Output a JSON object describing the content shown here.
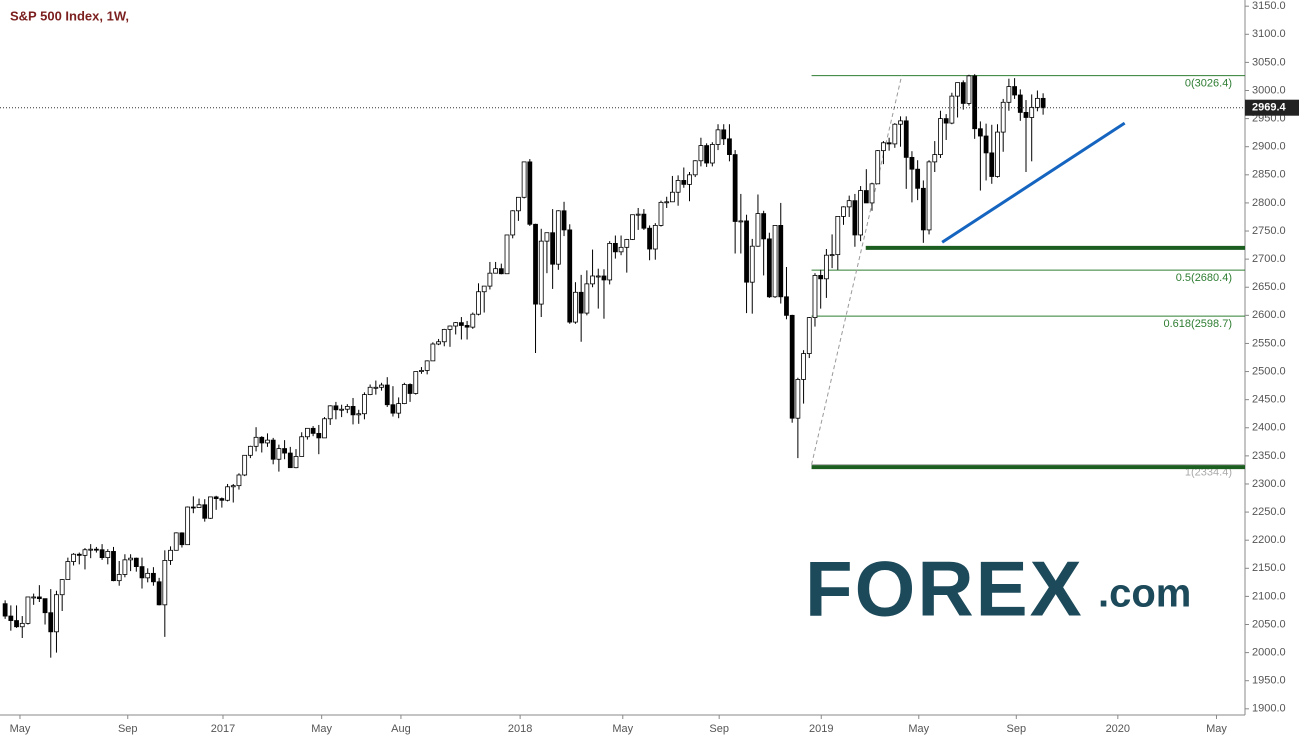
{
  "chart_data": {
    "type": "candlestick",
    "title": "S&P 500 Index, 1W,",
    "ohlc": [
      [
        2087,
        2093,
        2060,
        2065
      ],
      [
        2065,
        2084,
        2039,
        2057
      ],
      [
        2057,
        2084,
        2044,
        2046
      ],
      [
        2046,
        2065,
        2026,
        2052
      ],
      [
        2052,
        2099,
        2050,
        2099
      ],
      [
        2099,
        2105,
        2085,
        2099
      ],
      [
        2099,
        2120,
        2090,
        2096
      ],
      [
        2096,
        2096,
        2050,
        2071
      ],
      [
        2071,
        2113,
        1991,
        2037
      ],
      [
        2037,
        2110,
        2000,
        2103
      ],
      [
        2103,
        2131,
        2074,
        2130
      ],
      [
        2130,
        2169,
        2130,
        2162
      ],
      [
        2162,
        2177,
        2155,
        2175
      ],
      [
        2175,
        2178,
        2157,
        2173
      ],
      [
        2173,
        2186,
        2148,
        2183
      ],
      [
        2183,
        2193,
        2168,
        2184
      ],
      [
        2184,
        2188,
        2178,
        2183
      ],
      [
        2183,
        2193,
        2165,
        2169
      ],
      [
        2169,
        2184,
        2157,
        2180
      ],
      [
        2180,
        2188,
        2127,
        2128
      ],
      [
        2128,
        2163,
        2119,
        2139
      ],
      [
        2139,
        2175,
        2134,
        2165
      ],
      [
        2165,
        2175,
        2145,
        2168
      ],
      [
        2168,
        2169,
        2144,
        2153
      ],
      [
        2153,
        2169,
        2114,
        2133
      ],
      [
        2133,
        2150,
        2125,
        2141
      ],
      [
        2141,
        2152,
        2119,
        2126
      ],
      [
        2126,
        2133,
        2084,
        2085
      ],
      [
        2085,
        2182,
        2028,
        2164
      ],
      [
        2164,
        2189,
        2156,
        2182
      ],
      [
        2182,
        2214,
        2182,
        2213
      ],
      [
        2213,
        2214,
        2187,
        2192
      ],
      [
        2192,
        2260,
        2192,
        2259
      ],
      [
        2259,
        2278,
        2248,
        2258
      ],
      [
        2258,
        2274,
        2258,
        2263
      ],
      [
        2263,
        2273,
        2233,
        2239
      ],
      [
        2239,
        2277,
        2238,
        2277
      ],
      [
        2277,
        2279,
        2254,
        2274
      ],
      [
        2274,
        2276,
        2258,
        2271
      ],
      [
        2271,
        2300,
        2269,
        2295
      ],
      [
        2295,
        2300,
        2267,
        2297
      ],
      [
        2297,
        2319,
        2290,
        2316
      ],
      [
        2316,
        2351,
        2314,
        2351
      ],
      [
        2351,
        2368,
        2346,
        2367
      ],
      [
        2367,
        2401,
        2358,
        2383
      ],
      [
        2383,
        2385,
        2356,
        2373
      ],
      [
        2373,
        2390,
        2366,
        2378
      ],
      [
        2378,
        2382,
        2335,
        2344
      ],
      [
        2344,
        2370,
        2322,
        2363
      ],
      [
        2363,
        2378,
        2344,
        2355
      ],
      [
        2355,
        2366,
        2329,
        2329
      ],
      [
        2329,
        2362,
        2328,
        2349
      ],
      [
        2349,
        2392,
        2349,
        2384
      ],
      [
        2384,
        2399,
        2379,
        2399
      ],
      [
        2399,
        2403,
        2385,
        2390
      ],
      [
        2390,
        2405,
        2353,
        2382
      ],
      [
        2382,
        2419,
        2382,
        2416
      ],
      [
        2416,
        2440,
        2405,
        2439
      ],
      [
        2439,
        2446,
        2415,
        2432
      ],
      [
        2432,
        2441,
        2419,
        2433
      ],
      [
        2433,
        2442,
        2426,
        2438
      ],
      [
        2438,
        2453,
        2406,
        2423
      ],
      [
        2423,
        2432,
        2407,
        2425
      ],
      [
        2425,
        2463,
        2415,
        2459
      ],
      [
        2459,
        2477,
        2458,
        2472
      ],
      [
        2472,
        2484,
        2459,
        2472
      ],
      [
        2472,
        2480,
        2466,
        2476
      ],
      [
        2476,
        2490,
        2437,
        2441
      ],
      [
        2441,
        2474,
        2420,
        2426
      ],
      [
        2426,
        2454,
        2417,
        2443
      ],
      [
        2443,
        2480,
        2442,
        2477
      ],
      [
        2477,
        2479,
        2446,
        2461
      ],
      [
        2461,
        2500,
        2459,
        2500
      ],
      [
        2500,
        2508,
        2496,
        2502
      ],
      [
        2502,
        2520,
        2495,
        2519
      ],
      [
        2519,
        2552,
        2520,
        2549
      ],
      [
        2549,
        2558,
        2547,
        2553
      ],
      [
        2553,
        2576,
        2545,
        2575
      ],
      [
        2575,
        2582,
        2544,
        2581
      ],
      [
        2581,
        2588,
        2566,
        2587
      ],
      [
        2587,
        2597,
        2557,
        2582
      ],
      [
        2582,
        2590,
        2557,
        2579
      ],
      [
        2579,
        2605,
        2576,
        2602
      ],
      [
        2602,
        2657,
        2600,
        2642
      ],
      [
        2642,
        2652,
        2605,
        2652
      ],
      [
        2652,
        2695,
        2646,
        2675
      ],
      [
        2675,
        2695,
        2675,
        2683
      ],
      [
        2683,
        2692,
        2673,
        2674
      ],
      [
        2674,
        2743,
        2674,
        2743
      ],
      [
        2743,
        2787,
        2737,
        2786
      ],
      [
        2786,
        2810,
        2768,
        2810
      ],
      [
        2810,
        2873,
        2808,
        2873
      ],
      [
        2873,
        2878,
        2759,
        2762
      ],
      [
        2762,
        2763,
        2533,
        2620
      ],
      [
        2620,
        2754,
        2597,
        2732
      ],
      [
        2732,
        2747,
        2675,
        2747
      ],
      [
        2747,
        2789,
        2647,
        2691
      ],
      [
        2691,
        2787,
        2681,
        2786
      ],
      [
        2786,
        2802,
        2741,
        2752
      ],
      [
        2752,
        2762,
        2585,
        2588
      ],
      [
        2588,
        2659,
        2585,
        2641
      ],
      [
        2641,
        2672,
        2553,
        2604
      ],
      [
        2604,
        2680,
        2600,
        2656
      ],
      [
        2656,
        2717,
        2650,
        2670
      ],
      [
        2670,
        2683,
        2612,
        2670
      ],
      [
        2670,
        2682,
        2594,
        2663
      ],
      [
        2663,
        2732,
        2655,
        2728
      ],
      [
        2728,
        2742,
        2701,
        2713
      ],
      [
        2713,
        2742,
        2707,
        2721
      ],
      [
        2721,
        2736,
        2676,
        2735
      ],
      [
        2735,
        2779,
        2734,
        2779
      ],
      [
        2779,
        2791,
        2752,
        2780
      ],
      [
        2780,
        2789,
        2752,
        2755
      ],
      [
        2755,
        2760,
        2698,
        2718
      ],
      [
        2718,
        2764,
        2699,
        2760
      ],
      [
        2760,
        2804,
        2758,
        2801
      ],
      [
        2801,
        2811,
        2791,
        2802
      ],
      [
        2802,
        2848,
        2802,
        2819
      ],
      [
        2819,
        2849,
        2795,
        2840
      ],
      [
        2840,
        2863,
        2827,
        2833
      ],
      [
        2833,
        2855,
        2803,
        2850
      ],
      [
        2850,
        2876,
        2846,
        2875
      ],
      [
        2875,
        2916,
        2865,
        2902
      ],
      [
        2902,
        2906,
        2864,
        2871
      ],
      [
        2871,
        2908,
        2865,
        2904
      ],
      [
        2904,
        2940,
        2894,
        2930
      ],
      [
        2930,
        2940,
        2903,
        2914
      ],
      [
        2914,
        2940,
        2874,
        2886
      ],
      [
        2886,
        2894,
        2710,
        2767
      ],
      [
        2767,
        2816,
        2710,
        2768
      ],
      [
        2768,
        2779,
        2604,
        2659
      ],
      [
        2659,
        2736,
        2603,
        2723
      ],
      [
        2723,
        2815,
        2722,
        2781
      ],
      [
        2781,
        2786,
        2671,
        2736
      ],
      [
        2736,
        2747,
        2631,
        2633
      ],
      [
        2633,
        2760,
        2631,
        2760
      ],
      [
        2760,
        2800,
        2621,
        2633
      ],
      [
        2633,
        2686,
        2593,
        2600
      ],
      [
        2600,
        2601,
        2409,
        2417
      ],
      [
        2417,
        2489,
        2346,
        2486
      ],
      [
        2486,
        2538,
        2443,
        2532
      ],
      [
        2532,
        2597,
        2524,
        2596
      ],
      [
        2596,
        2675,
        2580,
        2671
      ],
      [
        2671,
        2681,
        2612,
        2665
      ],
      [
        2665,
        2718,
        2631,
        2707
      ],
      [
        2707,
        2744,
        2684,
        2708
      ],
      [
        2708,
        2775,
        2681,
        2776
      ],
      [
        2776,
        2794,
        2761,
        2793
      ],
      [
        2793,
        2813,
        2775,
        2804
      ],
      [
        2804,
        2816,
        2722,
        2743
      ],
      [
        2743,
        2830,
        2732,
        2822
      ],
      [
        2822,
        2860,
        2800,
        2800
      ],
      [
        2800,
        2836,
        2786,
        2834
      ],
      [
        2834,
        2894,
        2834,
        2893
      ],
      [
        2893,
        2910,
        2869,
        2907
      ],
      [
        2907,
        2916,
        2893,
        2905
      ],
      [
        2905,
        2942,
        2898,
        2940
      ],
      [
        2940,
        2954,
        2900,
        2946
      ],
      [
        2946,
        2954,
        2825,
        2881
      ],
      [
        2881,
        2892,
        2801,
        2860
      ],
      [
        2860,
        2876,
        2805,
        2826
      ],
      [
        2826,
        2840,
        2729,
        2752
      ],
      [
        2752,
        2876,
        2744,
        2873
      ],
      [
        2873,
        2910,
        2855,
        2886
      ],
      [
        2886,
        2964,
        2880,
        2950
      ],
      [
        2950,
        2958,
        2912,
        2942
      ],
      [
        2942,
        2996,
        2940,
        2990
      ],
      [
        2990,
        3014,
        2952,
        3014
      ],
      [
        3014,
        3018,
        2966,
        2977
      ],
      [
        2977,
        3028,
        2973,
        3026
      ],
      [
        3026,
        3029,
        2914,
        2932
      ],
      [
        2932,
        2945,
        2822,
        2919
      ],
      [
        2919,
        2941,
        2840,
        2889
      ],
      [
        2889,
        2939,
        2834,
        2847
      ],
      [
        2847,
        2940,
        2845,
        2926
      ],
      [
        2926,
        2985,
        2891,
        2979
      ],
      [
        2979,
        3021,
        2964,
        3007
      ],
      [
        3007,
        3022,
        2985,
        2992
      ],
      [
        2992,
        3002,
        2946,
        2961
      ],
      [
        2961,
        2983,
        2855,
        2952
      ],
      [
        2952,
        2993,
        2874,
        2970
      ],
      [
        2970,
        3000,
        2963,
        2986
      ],
      [
        2986,
        2995,
        2957,
        2969.4
      ]
    ],
    "xlim": [
      -0.9,
      217.4
    ],
    "xticks": [
      {
        "value": 2.6,
        "label": "May"
      },
      {
        "value": 21.5,
        "label": "Sep"
      },
      {
        "value": 38.2,
        "label": "2017"
      },
      {
        "value": 55.5,
        "label": "May"
      },
      {
        "value": 69.4,
        "label": "Aug"
      },
      {
        "value": 90.3,
        "label": "2018"
      },
      {
        "value": 108.3,
        "label": "May"
      },
      {
        "value": 125.2,
        "label": "Sep"
      },
      {
        "value": 143.1,
        "label": "2019"
      },
      {
        "value": 160.2,
        "label": "May"
      },
      {
        "value": 177.3,
        "label": "Sep"
      },
      {
        "value": 195.1,
        "label": "2020"
      },
      {
        "value": 212.4,
        "label": "May"
      }
    ],
    "ylim": [
      1889,
      3161
    ],
    "yticks": [
      {
        "value": 1900,
        "label": "1900.0"
      },
      {
        "value": 1950,
        "label": "1950.0"
      },
      {
        "value": 2000,
        "label": "2000.0"
      },
      {
        "value": 2050,
        "label": "2050.0"
      },
      {
        "value": 2100,
        "label": "2100.0"
      },
      {
        "value": 2150,
        "label": "2150.0"
      },
      {
        "value": 2200,
        "label": "2200.0"
      },
      {
        "value": 2250,
        "label": "2250.0"
      },
      {
        "value": 2300,
        "label": "2300.0"
      },
      {
        "value": 2350,
        "label": "2350.0"
      },
      {
        "value": 2400,
        "label": "2400.0"
      },
      {
        "value": 2450,
        "label": "2450.0"
      },
      {
        "value": 2500,
        "label": "2500.0"
      },
      {
        "value": 2550,
        "label": "2550.0"
      },
      {
        "value": 2600,
        "label": "2600.0"
      },
      {
        "value": 2650,
        "label": "2650.0"
      },
      {
        "value": 2700,
        "label": "2700.0"
      },
      {
        "value": 2750,
        "label": "2750.0"
      },
      {
        "value": 2800,
        "label": "2800.0"
      },
      {
        "value": 2850,
        "label": "2850.0"
      },
      {
        "value": 2900,
        "label": "2900.0"
      },
      {
        "value": 2950,
        "label": "2950.0"
      },
      {
        "value": 3000,
        "label": "3000.0"
      },
      {
        "value": 3050,
        "label": "3050.0"
      },
      {
        "value": 3100,
        "label": "3100.0"
      },
      {
        "value": 3150,
        "label": "3150.0"
      }
    ],
    "fib_start": 141.4,
    "fib_levels": [
      {
        "value": 3026.4,
        "label": "0(3026.4)",
        "color": "#2e7d32"
      },
      {
        "value": 2680.4,
        "label": "0.5(2680.4)",
        "color": "#2e7d32"
      },
      {
        "value": 2598.7,
        "label": "0.618(2598.7)",
        "color": "#2e7d32"
      },
      {
        "value": 2334.4,
        "label": "1(2334.4)",
        "color": "#aaaaaa"
      }
    ],
    "support_lines": [
      {
        "start": 150.9,
        "value": 2720,
        "color": "#1b5e20"
      },
      {
        "start": 141.4,
        "value": 2330,
        "color": "#1b5e20"
      }
    ],
    "trendline": {
      "x": [
        164.3,
        196.3
      ],
      "y": [
        2730,
        2942
      ],
      "color": "#1565c0"
    },
    "fib_diagonal": {
      "x": [
        141.4,
        157.2
      ],
      "y": [
        2334.4,
        3026.4
      ],
      "color": "#999999"
    },
    "logo": {
      "brand": "FOREX",
      "suffix": ".com"
    }
  }
}
